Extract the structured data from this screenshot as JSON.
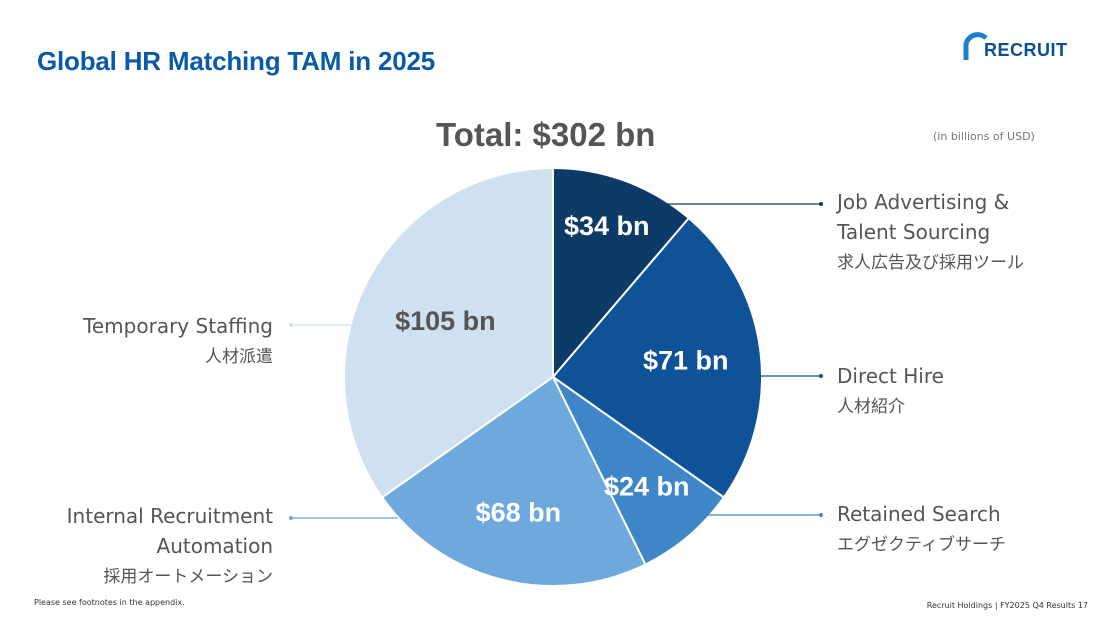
{
  "slide": {
    "title": "Global HR Matching TAM in 2025",
    "total": "Total: $302 bn",
    "units": "(in billions of USD)",
    "footnote": "Please see footnotes in the appendix.",
    "page_info": "Recruit Holdings | FY2025 Q4 Results 17",
    "logo_text": "RECRUIT"
  },
  "colors": {
    "title": "#0b5aa6",
    "job_advertising": "#0d3a66",
    "direct_hire": "#0f5298",
    "retained_search": "#3f86c8",
    "internal_automation": "#6ea8dc",
    "temporary_staffing": "#cfe0f1"
  },
  "labels": {
    "job_advertising": {
      "en1": "Job Advertising &",
      "en2": "Talent Sourcing",
      "jp": "求人広告及び採用ツール"
    },
    "direct_hire": {
      "en1": "Direct Hire",
      "jp": "人材紹介"
    },
    "retained_search": {
      "en1": "Retained Search",
      "jp": "エグゼクティブサーチ"
    },
    "internal_automation": {
      "en1": "Internal Recruitment",
      "en2": "Automation",
      "jp": "採用オートメーション"
    },
    "temporary_staffing": {
      "en1": "Temporary Staffing",
      "jp": "人材派遣"
    }
  },
  "chart_data": {
    "type": "pie",
    "total": 302,
    "unit": "billions of USD",
    "slices": [
      {
        "key": "job_advertising",
        "name": "Job Advertising & Talent Sourcing",
        "value": 34,
        "label": "$34 bn"
      },
      {
        "key": "direct_hire",
        "name": "Direct Hire",
        "value": 71,
        "label": "$71 bn"
      },
      {
        "key": "retained_search",
        "name": "Retained Search",
        "value": 24,
        "label": "$24 bn"
      },
      {
        "key": "internal_automation",
        "name": "Internal Recruitment Automation",
        "value": 68,
        "label": "$68 bn"
      },
      {
        "key": "temporary_staffing",
        "name": "Temporary Staffing",
        "value": 105,
        "label": "$105 bn"
      }
    ]
  }
}
